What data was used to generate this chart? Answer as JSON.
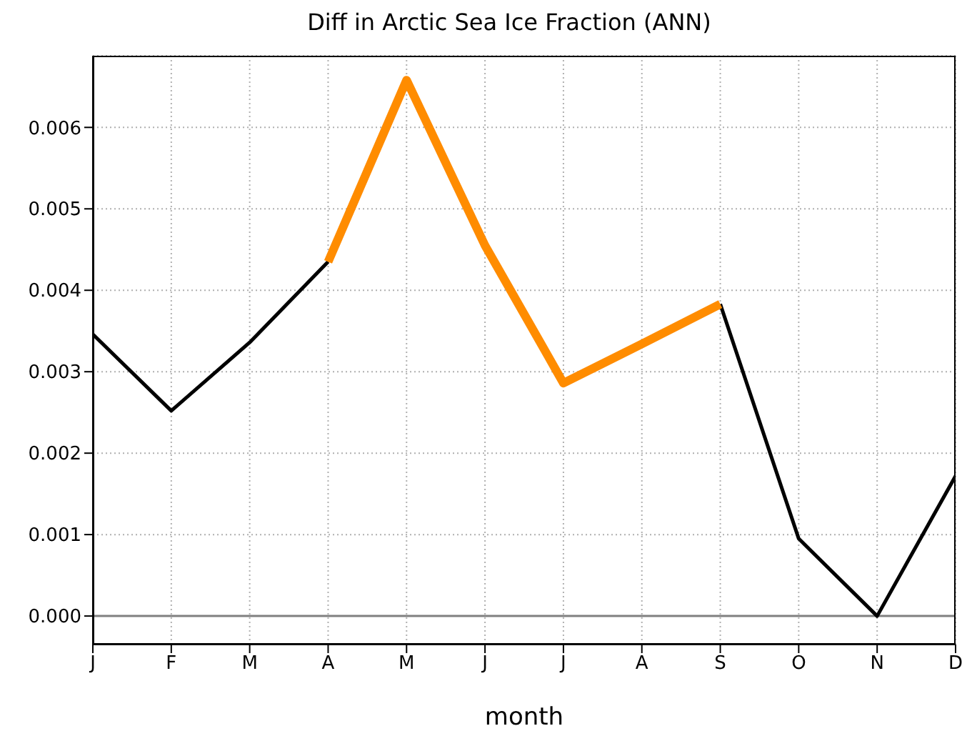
{
  "chart_data": {
    "type": "line",
    "title": "Diff in Arctic Sea Ice Fraction (ANN)",
    "xlabel": "month",
    "categories": [
      "J",
      "F",
      "M",
      "A",
      "M",
      "J",
      "J",
      "A",
      "S",
      "O",
      "N",
      "D"
    ],
    "series": [
      {
        "color": "#000000",
        "values": [
          0.00346,
          0.00252,
          0.00336,
          0.00435,
          null,
          null,
          null,
          null,
          0.00383,
          0.00095,
          0.0,
          0.00172
        ]
      },
      {
        "color": "#ff8c00",
        "values": [
          null,
          null,
          null,
          0.00435,
          0.00658,
          0.00455,
          0.00286,
          0.00334,
          0.00383,
          null,
          null,
          null
        ]
      }
    ],
    "ylim": [
      -0.00035,
      0.00688
    ],
    "yticks": [
      {
        "value": 0,
        "label": "0.000"
      },
      {
        "value": 0.001,
        "label": "0.001"
      },
      {
        "value": 0.002,
        "label": "0.002"
      },
      {
        "value": 0.003,
        "label": "0.003"
      },
      {
        "value": 0.004,
        "label": "0.004"
      },
      {
        "value": 0.005,
        "label": "0.005"
      },
      {
        "value": 0.006,
        "label": "0.006"
      }
    ],
    "ref_lines": [
      {
        "axis": "y",
        "value": 0,
        "color": "#808080"
      }
    ],
    "grid": true,
    "marker": "none",
    "line_style": "solid"
  }
}
